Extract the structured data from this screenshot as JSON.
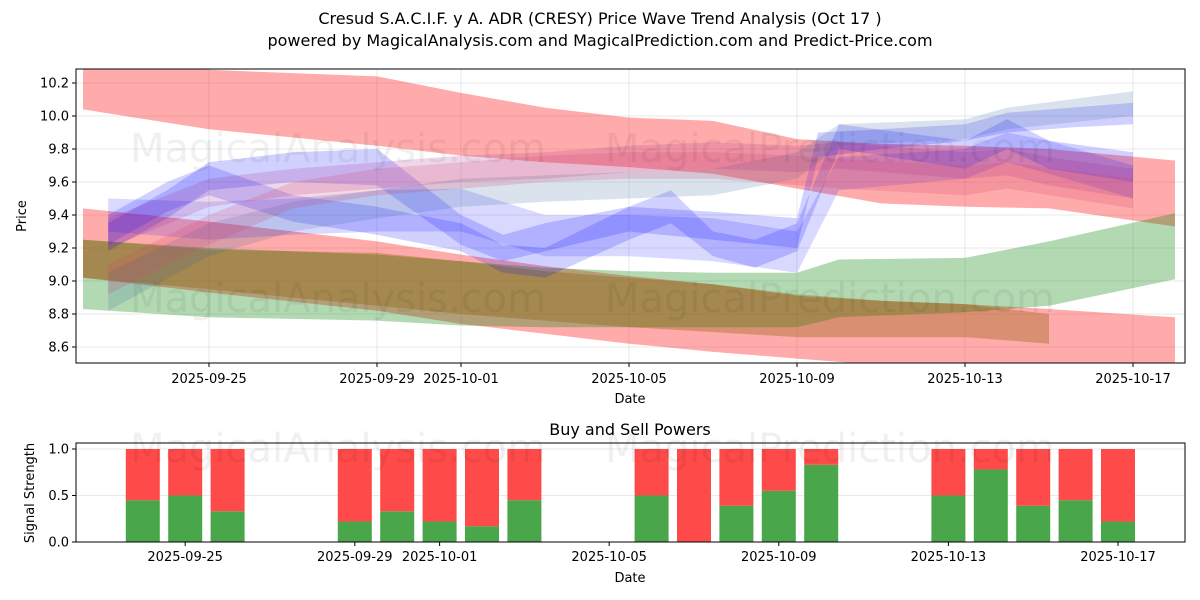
{
  "header": {
    "title": "Cresud S.A.C.I.F. y A. ADR (CRESY) Price Wave Trend Analysis (Oct 17 )",
    "subtitle": "powered by MagicalAnalysis.com and MagicalPrediction.com and Predict-Price.com"
  },
  "watermarks": [
    "MagicalAnalysis.com",
    "MagicalPrediction.com"
  ],
  "chart_data": [
    {
      "type": "area",
      "title": "",
      "xlabel": "Date",
      "ylabel": "Price",
      "ylim": [
        8.5,
        10.28
      ],
      "xlim_days_from_2025_09_22": [
        -0.15,
        26.2
      ],
      "yticks": [
        "8.6",
        "8.8",
        "9.0",
        "9.2",
        "9.4",
        "9.6",
        "9.8",
        "10.0",
        "10.2"
      ],
      "ytick_values": [
        8.6,
        8.8,
        9.0,
        9.2,
        9.4,
        9.6,
        9.8,
        10.0,
        10.2
      ],
      "xticks": [
        "2025-09-25",
        "2025-09-29",
        "2025-10-01",
        "2025-10-05",
        "2025-10-09",
        "2025-10-13",
        "2025-10-17"
      ],
      "xtick_days": [
        3,
        7,
        9,
        13,
        17,
        21,
        25
      ],
      "grid": true,
      "colors": {
        "red": "#ff0000",
        "green": "#008000",
        "blue": "#0000ff"
      },
      "series": [
        {
          "name": "red-top-band",
          "color": "red",
          "opacity": 0.33,
          "x": [
            0,
            3,
            7,
            9,
            11,
            13,
            15,
            17,
            19,
            21,
            23,
            26
          ],
          "upper": [
            10.32,
            10.28,
            10.24,
            10.14,
            10.05,
            9.99,
            9.97,
            9.86,
            9.83,
            9.82,
            9.8,
            9.73
          ],
          "lower": [
            10.04,
            9.92,
            9.82,
            9.76,
            9.72,
            9.69,
            9.65,
            9.56,
            9.47,
            9.45,
            9.44,
            9.33
          ]
        },
        {
          "name": "red-low-band",
          "color": "red",
          "opacity": 0.33,
          "x": [
            0,
            3,
            7,
            9,
            11,
            13,
            15,
            17,
            19,
            21,
            23,
            26
          ],
          "upper": [
            9.44,
            9.36,
            9.24,
            9.16,
            9.09,
            9.03,
            8.98,
            8.91,
            8.88,
            8.86,
            8.83,
            8.78
          ],
          "lower": [
            9.02,
            8.93,
            8.82,
            8.74,
            8.68,
            8.62,
            8.57,
            8.53,
            8.49,
            8.46,
            8.44,
            8.4
          ]
        },
        {
          "name": "green-low-band",
          "color": "green",
          "opacity": 0.3,
          "x": [
            0,
            3,
            7,
            9,
            11,
            13,
            15,
            17,
            18,
            21,
            23,
            26
          ],
          "upper": [
            9.25,
            9.2,
            9.16,
            9.12,
            9.08,
            9.06,
            9.05,
            9.05,
            9.13,
            9.14,
            9.24,
            9.41
          ],
          "lower": [
            8.83,
            8.78,
            8.76,
            8.73,
            8.72,
            8.72,
            8.72,
            8.72,
            8.78,
            8.81,
            8.85,
            9.01
          ]
        },
        {
          "name": "brown-band",
          "color": "#8b5a00",
          "opacity": 0.33,
          "x": [
            0,
            3,
            7,
            9,
            11,
            13,
            15,
            17,
            19,
            21,
            23
          ],
          "upper": [
            9.25,
            9.19,
            9.17,
            9.12,
            9.06,
            9.02,
            8.98,
            8.92,
            8.88,
            8.86,
            8.8
          ],
          "lower": [
            9.02,
            8.95,
            8.85,
            8.8,
            8.76,
            8.72,
            8.69,
            8.66,
            8.66,
            8.66,
            8.62
          ]
        },
        {
          "name": "blue-wave-1",
          "color": "blue",
          "opacity": 0.18,
          "x": [
            0.6,
            2,
            3,
            5,
            7,
            8,
            9,
            10,
            11,
            13,
            15,
            17,
            17.5,
            19,
            21,
            22,
            23.5,
            25
          ],
          "upper": [
            9.35,
            9.55,
            9.72,
            9.78,
            9.8,
            9.6,
            9.4,
            9.28,
            9.35,
            9.45,
            9.42,
            9.38,
            9.9,
            9.92,
            9.95,
            10.02,
            10.05,
            10.08
          ],
          "lower": [
            9.18,
            9.38,
            9.55,
            9.6,
            9.58,
            9.4,
            9.22,
            9.12,
            9.18,
            9.3,
            9.25,
            9.2,
            9.75,
            9.8,
            9.85,
            9.9,
            9.93,
            9.95
          ]
        },
        {
          "name": "blue-wave-2",
          "color": "blue",
          "opacity": 0.18,
          "x": [
            0.6,
            2,
            3,
            5,
            7,
            9,
            10,
            11,
            13,
            14,
            15,
            16,
            17,
            18,
            21,
            22,
            23,
            25
          ],
          "upper": [
            9.4,
            9.6,
            9.7,
            9.52,
            9.45,
            9.35,
            9.22,
            9.2,
            9.45,
            9.55,
            9.3,
            9.25,
            9.35,
            9.95,
            9.85,
            9.98,
            9.85,
            9.78
          ],
          "lower": [
            9.22,
            9.42,
            9.52,
            9.36,
            9.28,
            9.18,
            9.05,
            9.02,
            9.25,
            9.35,
            9.15,
            9.08,
            9.18,
            9.8,
            9.68,
            9.8,
            9.68,
            9.6
          ]
        },
        {
          "name": "blue-wave-3",
          "color": "blue",
          "opacity": 0.15,
          "x": [
            0.6,
            3,
            5,
            7,
            9,
            11,
            13,
            15,
            17,
            18,
            21,
            22,
            23,
            25
          ],
          "upper": [
            9.5,
            9.48,
            9.5,
            9.55,
            9.56,
            9.4,
            9.4,
            9.38,
            9.3,
            9.75,
            9.8,
            9.9,
            9.85,
            9.7
          ],
          "lower": [
            9.3,
            9.25,
            9.28,
            9.3,
            9.3,
            9.15,
            9.15,
            9.12,
            9.05,
            9.55,
            9.62,
            9.72,
            9.65,
            9.5
          ]
        },
        {
          "name": "purple-wave",
          "color": "#a0208a",
          "opacity": 0.18,
          "x": [
            0.6,
            3,
            5,
            7,
            9,
            11,
            13,
            15,
            17,
            18,
            21,
            22,
            23,
            25
          ],
          "upper": [
            9.38,
            9.62,
            9.68,
            9.72,
            9.76,
            9.78,
            9.82,
            9.84,
            9.82,
            9.84,
            9.78,
            9.8,
            9.75,
            9.68
          ],
          "lower": [
            9.2,
            9.45,
            9.52,
            9.56,
            9.6,
            9.62,
            9.66,
            9.68,
            9.66,
            9.68,
            9.62,
            9.64,
            9.58,
            9.5
          ]
        },
        {
          "name": "blue-green-wave",
          "color": "#336699",
          "opacity": 0.18,
          "x": [
            0.6,
            3,
            5,
            7,
            9,
            11,
            13,
            15,
            17,
            18,
            21,
            22,
            25
          ],
          "upper": [
            9.05,
            9.35,
            9.48,
            9.55,
            9.62,
            9.64,
            9.66,
            9.68,
            9.78,
            9.95,
            9.98,
            10.05,
            10.15
          ],
          "lower": [
            8.82,
            9.15,
            9.3,
            9.38,
            9.45,
            9.48,
            9.5,
            9.52,
            9.62,
            9.82,
            9.86,
            9.92,
            10.0
          ]
        },
        {
          "name": "pink-wave",
          "color": "#d04070",
          "opacity": 0.2,
          "x": [
            0.6,
            3,
            5,
            7,
            9,
            11,
            13,
            15,
            17,
            18,
            21,
            22,
            25
          ],
          "upper": [
            9.1,
            9.4,
            9.6,
            9.68,
            9.72,
            9.76,
            9.78,
            9.78,
            9.76,
            9.74,
            9.7,
            9.72,
            9.62
          ],
          "lower": [
            8.92,
            9.22,
            9.44,
            9.52,
            9.56,
            9.6,
            9.62,
            9.62,
            9.58,
            9.56,
            9.52,
            9.56,
            9.44
          ]
        }
      ]
    },
    {
      "type": "bar",
      "title": "Buy and Sell Powers",
      "xlabel": "Date",
      "ylabel": "Signal Strength",
      "ylim": [
        0,
        1.05
      ],
      "yticks": [
        "0.0",
        "0.5",
        "1.0"
      ],
      "ytick_values": [
        0,
        0.5,
        1.0
      ],
      "xticks": [
        "2025-09-25",
        "2025-09-29",
        "2025-10-01",
        "2025-10-05",
        "2025-10-09",
        "2025-10-13",
        "2025-10-17"
      ],
      "xtick_days": [
        3,
        7,
        9,
        13,
        17,
        21,
        25
      ],
      "grid": true,
      "colors": {
        "buy": "#4aa64a",
        "sell": "#ff4a4a"
      },
      "categories": [
        "2025-09-24",
        "2025-09-25",
        "2025-09-26",
        "2025-09-29",
        "2025-09-30",
        "2025-10-01",
        "2025-10-02",
        "2025-10-03",
        "2025-10-06",
        "2025-10-07",
        "2025-10-08",
        "2025-10-09",
        "2025-10-10",
        "2025-10-13",
        "2025-10-14",
        "2025-10-15",
        "2025-10-16",
        "2025-10-17"
      ],
      "bar_days": [
        2,
        3,
        4,
        7,
        8,
        9,
        10,
        11,
        14,
        15,
        16,
        17,
        18,
        21,
        22,
        23,
        24,
        25
      ],
      "series": [
        {
          "name": "Buy",
          "values": [
            0.45,
            0.5,
            0.33,
            0.22,
            0.33,
            0.22,
            0.17,
            0.45,
            0.5,
            0.0,
            0.39,
            0.55,
            0.83,
            0.5,
            0.78,
            0.39,
            0.45,
            0.22
          ]
        },
        {
          "name": "Sell",
          "values": [
            0.55,
            0.5,
            0.67,
            0.78,
            0.67,
            0.78,
            0.83,
            0.55,
            0.5,
            1.0,
            0.61,
            0.45,
            0.17,
            0.5,
            0.22,
            0.61,
            0.55,
            0.78
          ]
        }
      ]
    }
  ]
}
